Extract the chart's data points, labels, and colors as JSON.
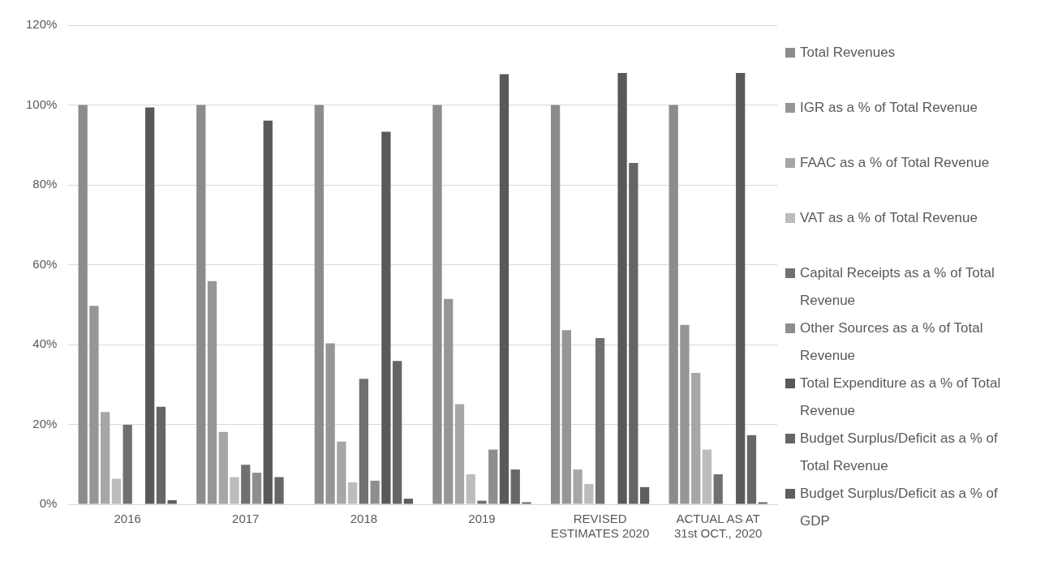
{
  "chart_data": {
    "type": "bar",
    "categories": [
      "2016",
      "2017",
      "2018",
      "2019",
      "REVISED ESTIMATES 2020",
      "ACTUAL AS AT 31st OCT., 2020"
    ],
    "series": [
      {
        "name": "Total Revenues",
        "color": "#8c8c8c",
        "values": [
          100,
          100,
          100,
          100,
          100,
          100
        ]
      },
      {
        "name": "IGR as a % of Total Revenue",
        "color": "#969696",
        "values": [
          49.7,
          55.9,
          40.3,
          51.4,
          43.6,
          44.9
        ]
      },
      {
        "name": "FAAC as a % of Total Revenue",
        "color": "#a6a6a6",
        "values": [
          23.1,
          18.1,
          15.7,
          25.1,
          8.7,
          32.9
        ]
      },
      {
        "name": "VAT as a % of Total Revenue",
        "color": "#bcbcbc",
        "values": [
          6.4,
          6.8,
          5.5,
          7.5,
          5.1,
          13.7
        ]
      },
      {
        "name": "Capital Receipts as a % of Total Revenue",
        "color": "#707070",
        "values": [
          19.9,
          9.9,
          31.4,
          0.9,
          41.6,
          7.5
        ]
      },
      {
        "name": "Other Sources as a % of Total Revenue",
        "color": "#8e8e8e",
        "values": [
          null,
          7.9,
          5.9,
          13.7,
          null,
          null
        ]
      },
      {
        "name": "Total Expenditure as a % of Total Revenue",
        "color": "#595959",
        "values": [
          99.4,
          96.1,
          93.3,
          107.7,
          108.0,
          108.0
        ]
      },
      {
        "name": "Budget Surplus/Deficit as a % of Total Revenue",
        "color": "#666666",
        "values": [
          24.4,
          6.8,
          35.9,
          8.7,
          85.5,
          17.3
        ]
      },
      {
        "name": "Budget Surplus/Deficit as a % of GDP",
        "color": "#5e5e5e",
        "values": [
          1.0,
          null,
          1.4,
          0.5,
          4.3,
          0.5
        ]
      }
    ],
    "ylim": [
      0,
      120
    ],
    "yticks": [
      {
        "value": 0,
        "label": "0%"
      },
      {
        "value": 20,
        "label": "20%"
      },
      {
        "value": 40,
        "label": "40%"
      },
      {
        "value": 60,
        "label": "60%"
      },
      {
        "value": 80,
        "label": "80%"
      },
      {
        "value": 100,
        "label": "100%"
      },
      {
        "value": 120,
        "label": "120%"
      }
    ],
    "grid": "y",
    "legend": "right"
  }
}
